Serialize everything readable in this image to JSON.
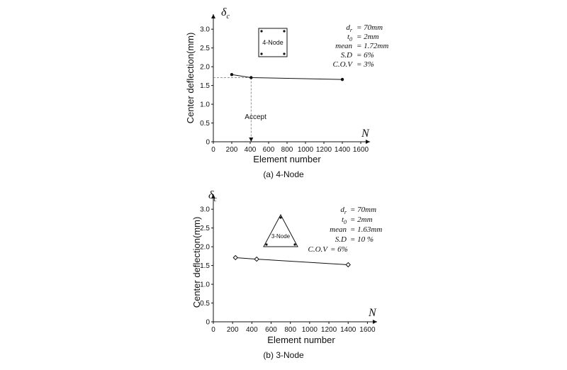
{
  "chart_data": [
    {
      "type": "line",
      "caption": "(a) 4-Node",
      "xlabel": "Element number",
      "ylabel": "Center deflection(mm)",
      "x_symbol": "N",
      "y_symbol": "δc",
      "xlim": [
        0,
        1700
      ],
      "ylim": [
        0,
        3.4
      ],
      "xticks": [
        0,
        200,
        400,
        600,
        800,
        1000,
        1200,
        1400,
        1600
      ],
      "yticks": [
        0,
        0.5,
        1.0,
        1.5,
        2.0,
        2.5,
        3.0
      ],
      "series": [
        {
          "marker": "circle",
          "x": [
            200,
            410,
            1400
          ],
          "y": [
            1.79,
            1.71,
            1.66
          ]
        }
      ],
      "annotation": {
        "text": "Accept",
        "x": 410,
        "y": 1.71
      },
      "element_label": "4-Node",
      "params": [
        "dr = 70mm",
        "t0 = 2mm",
        "mean = 1.72mm",
        "S.D = 6%",
        "C.O.V = 3%"
      ]
    },
    {
      "type": "line",
      "caption": "(b) 3-Node",
      "xlabel": "Element number",
      "ylabel": "Center deflection(mm)",
      "x_symbol": "N",
      "y_symbol": "δc",
      "xlim": [
        0,
        1700
      ],
      "ylim": [
        0,
        3.4
      ],
      "xticks": [
        0,
        200,
        400,
        600,
        800,
        1000,
        1200,
        1400,
        1600
      ],
      "yticks": [
        0,
        0.5,
        1.0,
        1.5,
        2.0,
        2.5,
        3.0
      ],
      "series": [
        {
          "marker": "diamond",
          "x": [
            230,
            450,
            1400
          ],
          "y": [
            1.71,
            1.67,
            1.52
          ]
        }
      ],
      "element_label": "3-Node",
      "params": [
        "dr = 70mm",
        "t0 = 2mm",
        "mean = 1.63mm",
        "S.D = 10 %",
        "C.O.V = 6%"
      ]
    }
  ]
}
